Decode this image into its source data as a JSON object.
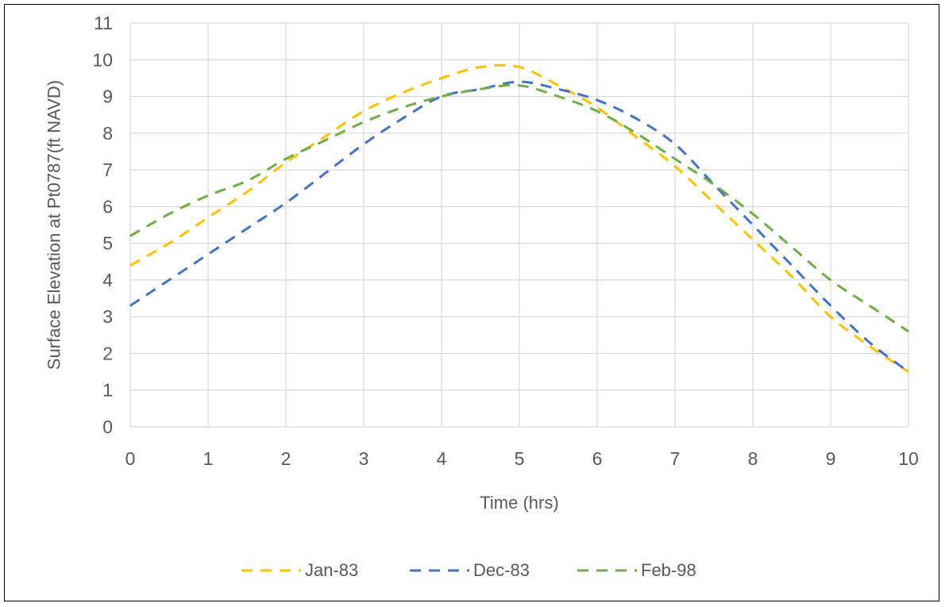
{
  "chart_data": {
    "type": "line",
    "xlabel": "Time (hrs)",
    "ylabel": "Surface Elevation at Pt0787(ft NAVD)",
    "xlim": [
      0,
      10
    ],
    "ylim": [
      0,
      11
    ],
    "x_ticks": [
      0,
      1,
      2,
      3,
      4,
      5,
      6,
      7,
      8,
      9,
      10
    ],
    "y_ticks": [
      0,
      1,
      2,
      3,
      4,
      5,
      6,
      7,
      8,
      9,
      10,
      11
    ],
    "grid": true,
    "legend_position": "bottom",
    "series": [
      {
        "name": "Jan-83",
        "color": "#FFC000",
        "dash": true,
        "x": [
          0,
          0.5,
          1,
          1.5,
          2,
          2.5,
          3,
          3.5,
          4,
          4.5,
          5,
          5.5,
          6,
          6.5,
          7,
          7.5,
          8,
          8.5,
          9,
          9.5,
          10
        ],
        "y": [
          4.4,
          5.0,
          5.7,
          6.4,
          7.2,
          7.9,
          8.6,
          9.1,
          9.5,
          9.8,
          9.8,
          9.3,
          8.7,
          7.9,
          7.1,
          6.1,
          5.1,
          4.1,
          3.0,
          2.2,
          1.5
        ]
      },
      {
        "name": "Dec-83",
        "color": "#4472C4",
        "dash": true,
        "x": [
          0,
          0.5,
          1,
          1.5,
          2,
          2.5,
          3,
          3.5,
          4,
          4.5,
          5,
          5.5,
          6,
          6.5,
          7,
          7.5,
          8,
          8.5,
          9,
          9.5,
          10
        ],
        "y": [
          3.3,
          4.0,
          4.7,
          5.4,
          6.1,
          6.9,
          7.7,
          8.4,
          9.0,
          9.2,
          9.4,
          9.2,
          8.9,
          8.4,
          7.7,
          6.6,
          5.5,
          4.4,
          3.3,
          2.3,
          1.5
        ]
      },
      {
        "name": "Feb-98",
        "color": "#70AD47",
        "dash": true,
        "x": [
          0,
          0.5,
          1,
          1.5,
          2,
          2.5,
          3,
          3.5,
          4,
          4.5,
          5,
          5.5,
          6,
          6.5,
          7,
          7.5,
          8,
          8.5,
          9,
          9.5,
          10
        ],
        "y": [
          5.2,
          5.8,
          6.3,
          6.7,
          7.3,
          7.8,
          8.3,
          8.7,
          9.0,
          9.2,
          9.3,
          9.0,
          8.6,
          8.0,
          7.3,
          6.6,
          5.8,
          4.9,
          4.0,
          3.3,
          2.6
        ]
      }
    ]
  }
}
